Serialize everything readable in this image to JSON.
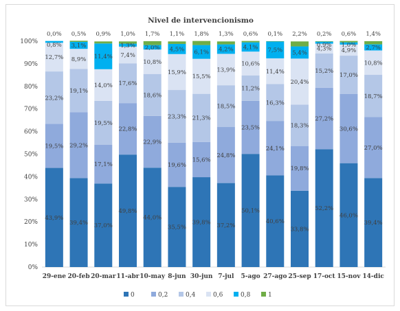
{
  "chart_data": {
    "type": "bar",
    "stacked": true,
    "title": "Nivel de intervencionismo",
    "categories": [
      "29-ene",
      "20-feb",
      "20-mar",
      "11-abr",
      "10-may",
      "8-jun",
      "30-jun",
      "7-jul",
      "5-ago",
      "27-ago",
      "25-sep",
      "17-oct",
      "15-nov",
      "14-dic"
    ],
    "series": [
      {
        "name": "0",
        "color": "#2e75b6",
        "values": [
          43.9,
          39.4,
          37.0,
          49.8,
          44.0,
          35.5,
          39.8,
          37.2,
          50.1,
          40.6,
          33.8,
          52.2,
          46.0,
          39.4
        ],
        "labels": [
          "43,9%",
          "39,4%",
          "37,0%",
          "49,8%",
          "44,0%",
          "35,5%",
          "39,8%",
          "37,2%",
          "50,1%",
          "40,6%",
          "33,8%",
          "52,2%",
          "46,0%",
          "39,4%"
        ]
      },
      {
        "name": "0,2",
        "color": "#8faadc",
        "values": [
          19.5,
          29.2,
          17.1,
          22.8,
          22.9,
          19.6,
          15.6,
          24.8,
          23.5,
          24.1,
          19.8,
          27.2,
          30.6,
          27.0
        ],
        "labels": [
          "19,5%",
          "29,2%",
          "17,1%",
          "22,8%",
          "22,9%",
          "19,6%",
          "15,6%",
          "24,8%",
          "23,5%",
          "24,1%",
          "19,8%",
          "27,2%",
          "30,6%",
          "27,0%"
        ]
      },
      {
        "name": "0,4",
        "color": "#b4c7e7",
        "values": [
          23.2,
          19.1,
          19.5,
          17.6,
          18.6,
          23.3,
          21.3,
          18.5,
          11.2,
          16.3,
          18.3,
          15.2,
          17.0,
          18.7
        ],
        "labels": [
          "23,2%",
          "19,1%",
          "19,5%",
          "17,6%",
          "18,6%",
          "23,3%",
          "21,3%",
          "18,5%",
          "11,2%",
          "16,3%",
          "18,3%",
          "15,2%",
          "17,0%",
          "18,7%"
        ]
      },
      {
        "name": "0,6",
        "color": "#dae3f3",
        "values": [
          12.7,
          8.9,
          14.0,
          7.4,
          10.8,
          15.9,
          15.5,
          13.9,
          10.6,
          11.4,
          20.4,
          4.3,
          4.9,
          10.8
        ],
        "labels": [
          "12,7%",
          "8,9%",
          "14,0%",
          "7,4%",
          "10,8%",
          "15,9%",
          "15,5%",
          "13,9%",
          "10,6%",
          "11,4%",
          "20,4%",
          "4,3%",
          "4,9%",
          "10,8%"
        ]
      },
      {
        "name": "0,8",
        "color": "#00b0f0",
        "values": [
          0.8,
          3.1,
          11.4,
          1.3,
          2.0,
          4.5,
          6.1,
          4.2,
          4.1,
          7.5,
          5.4,
          0.9,
          1.0,
          2.7
        ],
        "labels": [
          "0,8%",
          "3,1%",
          "11,4%",
          "1,3%",
          "2,0%",
          "4,5%",
          "6,1%",
          "4,2%",
          "4,1%",
          "7,5%",
          "5,4%",
          "0,9%",
          "1,0%",
          "2,7%"
        ]
      },
      {
        "name": "1",
        "color": "#70ad47",
        "values": [
          0.0,
          0.5,
          0.9,
          1.0,
          1.7,
          1.1,
          1.8,
          1.3,
          0.6,
          0.1,
          2.2,
          0.2,
          0.6,
          1.4
        ],
        "labels": [
          "0,0%",
          "0,5%",
          "0,9%",
          "1,0%",
          "1,7%",
          "1,1%",
          "1,8%",
          "1,3%",
          "0,6%",
          "0,1%",
          "2,2%",
          "0,2%",
          "0,6%",
          "1,4%"
        ]
      }
    ],
    "y_ticks": [
      "0%",
      "10%",
      "20%",
      "30%",
      "40%",
      "50%",
      "60%",
      "70%",
      "80%",
      "90%",
      "100%"
    ],
    "ylim": [
      0,
      100
    ],
    "xlabel": "",
    "ylabel": "",
    "legend_position": "bottom",
    "grid": false
  }
}
